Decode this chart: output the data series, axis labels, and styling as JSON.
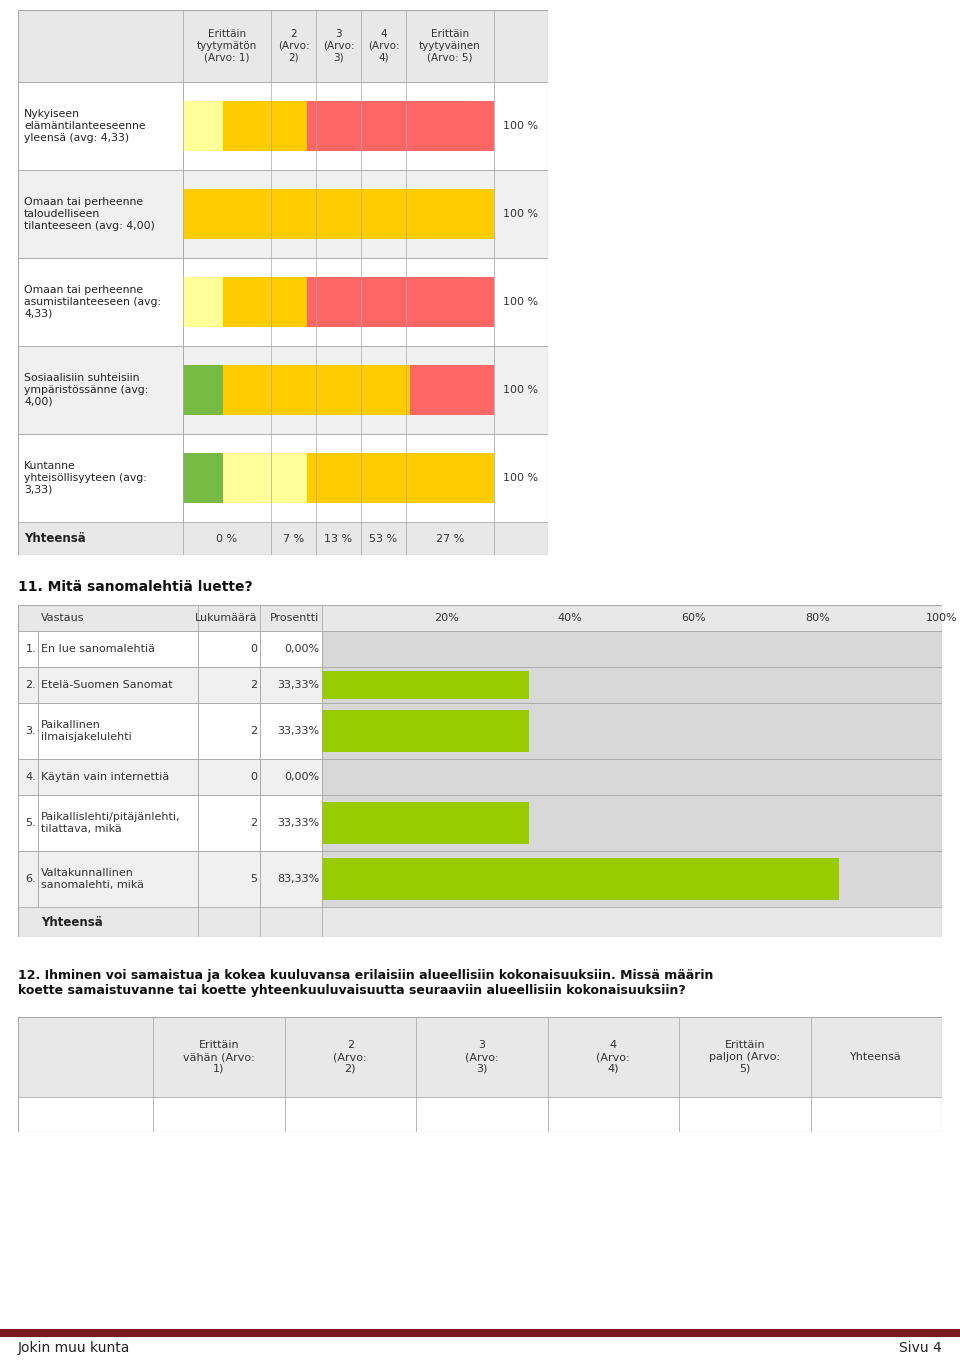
{
  "page_bg": "#ffffff",
  "section1": {
    "header_cols": [
      "Erittäin\ntyytymätön\n(Arvo: 1)",
      "2\n(Arvo:\n2)",
      "3\n(Arvo:\n3)",
      "4\n(Arvo:\n4)",
      "Erittäin\ntyytyväinen\n(Arvo: 5)"
    ],
    "rows": [
      {
        "label": "Nykyiseen\nelämäntilanteeseenne\nyleensä (avg: 4,33)",
        "bar_data": [
          13,
          27,
          60
        ],
        "bar_colors": [
          "#ffff99",
          "#ffcc00",
          "#ff6666"
        ],
        "total": "100 %"
      },
      {
        "label": "Omaan tai perheenne\ntaloudelliseen\ntilanteeseen (avg: 4,00)",
        "bar_data": [
          100
        ],
        "bar_colors": [
          "#ffcc00"
        ],
        "total": "100 %"
      },
      {
        "label": "Omaan tai perheenne\nasumistilanteeseen (avg:\n4,33)",
        "bar_data": [
          13,
          27,
          60
        ],
        "bar_colors": [
          "#ffff99",
          "#ffcc00",
          "#ff6666"
        ],
        "total": "100 %"
      },
      {
        "label": "Sosiaalisiin suhteisiin\nympäristössänne (avg:\n4,00)",
        "bar_data": [
          13,
          60,
          27
        ],
        "bar_colors": [
          "#77bb44",
          "#ffcc00",
          "#ff6666"
        ],
        "total": "100 %"
      },
      {
        "label": "Kuntanne\nyhteisöllisyyteen (avg:\n3,33)",
        "bar_data": [
          13,
          27,
          60
        ],
        "bar_colors": [
          "#77bb44",
          "#ffff99",
          "#ffcc00"
        ],
        "total": "100 %"
      }
    ],
    "yhteensa_label": "Yhteensä",
    "yhteensa_vals": [
      "0 %",
      "7 %",
      "13 %",
      "53 %",
      "27 %"
    ]
  },
  "section2_title": "11. Mitä sanomalehtiä luette?",
  "section2": {
    "rows": [
      {
        "num": "1.",
        "label": "En lue sanomalehtiä",
        "count": "0",
        "pct": "0,00%",
        "bar_pct": 0
      },
      {
        "num": "2.",
        "label": "Etelä-Suomen Sanomat",
        "count": "2",
        "pct": "33,33%",
        "bar_pct": 33.33
      },
      {
        "num": "3.",
        "label": "Paikallinen\nilmaisjakelulehti",
        "count": "2",
        "pct": "33,33%",
        "bar_pct": 33.33
      },
      {
        "num": "4.",
        "label": "Käytän vain internettiä",
        "count": "0",
        "pct": "0,00%",
        "bar_pct": 0
      },
      {
        "num": "5.",
        "label": "Paikallislehti/pitäjänlehti,\ntilattava, mikä",
        "count": "2",
        "pct": "33,33%",
        "bar_pct": 33.33
      },
      {
        "num": "6.",
        "label": "Valtakunnallinen\nsanomalehti, mikä",
        "count": "5",
        "pct": "83,33%",
        "bar_pct": 83.33
      }
    ],
    "yhteensa": "Yhteensä",
    "bar_color": "#99cc00",
    "bar_bg": "#d8d8d8"
  },
  "section3_title": "12. Ihminen voi samaistua ja kokea kuuluvansa erilaisiin alueellisiin kokonaisuuksiin. Missä määrin\nkoette samaistuvanne tai koette yhteenkuuluvaisuutta seuraaviin alueellisiin kokonaisuuksiin?",
  "section3": {
    "header_cols": [
      "Erittäin\nvähän (Arvo:\n1)",
      "2\n(Arvo:\n2)",
      "3\n(Arvo:\n3)",
      "4\n(Arvo:\n4)",
      "Erittäin\npaljon (Arvo:\n5)",
      "Yhteensä"
    ]
  },
  "footer_left": "Jokin muu kunta",
  "footer_right": "Sivu 4",
  "footer_bar_color": "#7a1a1a",
  "header_bg": "#e8e8e8",
  "cell_border": "#aaaaaa",
  "row_bg_odd": "#ffffff",
  "row_bg_even": "#f0f0f0"
}
